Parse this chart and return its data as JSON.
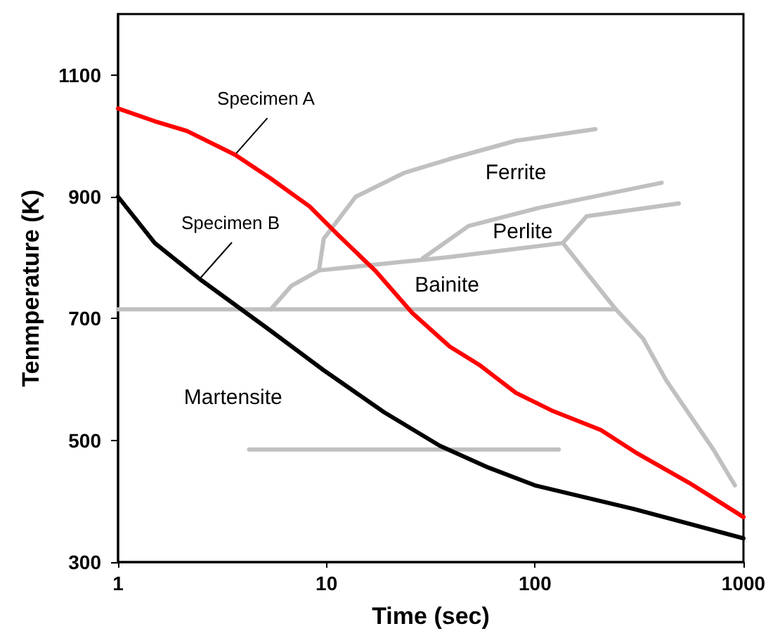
{
  "chart_data": {
    "type": "line",
    "xlabel": "Time (sec)",
    "ylabel": "Tenmperature (K)",
    "log": "x",
    "xlim": [
      1,
      1000
    ],
    "xticks": [
      1,
      10,
      100,
      1000
    ],
    "ylim": [
      300,
      1200
    ],
    "yticks": [
      300,
      500,
      700,
      900,
      1100
    ],
    "grid": false,
    "marker": "none",
    "line_style": "solid",
    "series": [
      {
        "color": "#c0c0c0",
        "x": [
          1,
          243
        ],
        "values": [
          715,
          715
        ]
      },
      {
        "color": "#c0c0c0",
        "x": [
          4.25,
          130
        ],
        "values": [
          485,
          485
        ]
      },
      {
        "color": "#c0c0c0",
        "x": [
          5.4,
          6.8,
          9.2,
          39,
          136
        ],
        "values": [
          715,
          754,
          779,
          801,
          824
        ]
      },
      {
        "color": "#c0c0c0",
        "x": [
          9.2,
          9.7,
          13.8,
          23.5,
          39,
          81,
          195
        ],
        "values": [
          779,
          831,
          900,
          939,
          962,
          992,
          1011
        ]
      },
      {
        "color": "#c0c0c0",
        "x": [
          29,
          48,
          105,
          405
        ],
        "values": [
          799,
          852,
          882,
          923
        ]
      },
      {
        "color": "#c0c0c0",
        "x": [
          136,
          177,
          490
        ],
        "values": [
          824,
          868,
          889
        ]
      },
      {
        "color": "#c0c0c0",
        "x": [
          136,
          243,
          330,
          425,
          720,
          910
        ],
        "values": [
          824,
          716,
          667,
          599,
          484,
          426
        ]
      },
      {
        "color": "#ff0000",
        "x": [
          1,
          1.5,
          2.14,
          3.64,
          5.4,
          8.3,
          11.3,
          17.2,
          25.8,
          39,
          54,
          81,
          122,
          207,
          311,
          550,
          1000
        ],
        "values": [
          1045,
          1024,
          1008,
          969,
          930,
          884,
          838,
          778,
          709,
          654,
          624,
          578,
          548,
          517,
          478,
          430,
          374
        ]
      },
      {
        "color": "#000000",
        "x": [
          1,
          1.5,
          2.46,
          5.2,
          9.7,
          18.9,
          35,
          60,
          100,
          300,
          1000
        ],
        "values": [
          900,
          824,
          765,
          684,
          615,
          546,
          491,
          455,
          426,
          387,
          339
        ]
      }
    ],
    "annotations": [
      {
        "text": "Specimen A",
        "x": 3.64,
        "y": 969
      },
      {
        "text": "Specimen B",
        "x": 2.46,
        "y": 765
      },
      "Ferrite",
      "Perlite",
      "Bainite",
      "Martensite"
    ]
  }
}
